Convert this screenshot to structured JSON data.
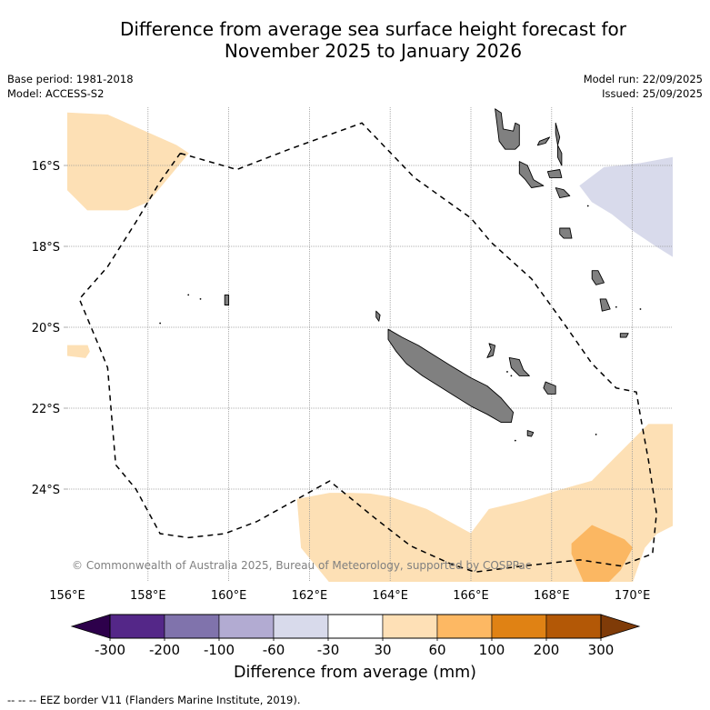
{
  "title": {
    "line1": "Difference from average sea surface height forecast for",
    "line2": "November 2025 to January 2026"
  },
  "meta_left": {
    "base_period": "Base period: 1981-2018",
    "model": "Model: ACCESS-S2"
  },
  "meta_right": {
    "model_run": "Model run: 22/09/2025",
    "issued": "Issued: 25/09/2025"
  },
  "map": {
    "lon_range": [
      156,
      171
    ],
    "lat_range": [
      -26.3,
      -14.6
    ],
    "x_ticks": [
      "156°E",
      "158°E",
      "160°E",
      "162°E",
      "164°E",
      "166°E",
      "168°E",
      "170°E"
    ],
    "x_tick_values": [
      156,
      158,
      160,
      162,
      164,
      166,
      168,
      170
    ],
    "y_ticks": [
      "16°S",
      "18°S",
      "20°S",
      "22°S",
      "24°S"
    ],
    "y_tick_values": [
      -16,
      -18,
      -20,
      -22,
      -24
    ],
    "gridlines": true,
    "copyright": "© Commonwealth of Australia 2025, Bureau of Meteorology, supported by COSPPac",
    "regions": [
      {
        "name": "anomaly-30-60-northwest",
        "category": "30 to 60",
        "color": "#fde0b5",
        "lonlat": [
          [
            156,
            -14.7
          ],
          [
            157,
            -14.75
          ],
          [
            158.7,
            -15.5
          ],
          [
            159.0,
            -15.7
          ],
          [
            158.0,
            -16.9
          ],
          [
            157.5,
            -17.1
          ],
          [
            156.5,
            -17.1
          ],
          [
            156,
            -16.6
          ]
        ]
      },
      {
        "name": "anomaly-30-60-west-small",
        "category": "30 to 60",
        "color": "#fde0b5",
        "lonlat": [
          [
            156,
            -20.45
          ],
          [
            156.5,
            -20.45
          ],
          [
            156.55,
            -20.6
          ],
          [
            156.45,
            -20.75
          ],
          [
            156,
            -20.7
          ]
        ]
      },
      {
        "name": "anomaly-minus60-minus30-northeast",
        "category": "-60 to -30",
        "color": "#d8daeb",
        "lonlat": [
          [
            168.7,
            -16.5
          ],
          [
            169.3,
            -16.05
          ],
          [
            170.2,
            -15.95
          ],
          [
            171,
            -15.8
          ],
          [
            171,
            -18.25
          ],
          [
            170.6,
            -18.0
          ],
          [
            170.0,
            -17.6
          ],
          [
            169.5,
            -17.2
          ],
          [
            169.0,
            -16.9
          ]
        ]
      },
      {
        "name": "anomaly-30-60-south",
        "category": "30 to 60",
        "color": "#fde0b5",
        "lonlat": [
          [
            161.7,
            -24.25
          ],
          [
            162.5,
            -24.1
          ],
          [
            163.0,
            -24.1
          ],
          [
            163.5,
            -24.12
          ],
          [
            164.0,
            -24.2
          ],
          [
            164.9,
            -24.5
          ],
          [
            166.0,
            -25.1
          ],
          [
            166.45,
            -24.5
          ],
          [
            167.3,
            -24.3
          ],
          [
            168.3,
            -24.0
          ],
          [
            169.0,
            -23.8
          ],
          [
            169.6,
            -23.2
          ],
          [
            170.4,
            -22.4
          ],
          [
            171,
            -22.4
          ],
          [
            171,
            -24.9
          ],
          [
            170.6,
            -25.1
          ],
          [
            170.3,
            -25.45
          ],
          [
            170.0,
            -26.3
          ],
          [
            162.5,
            -26.3
          ],
          [
            161.8,
            -25.45
          ]
        ]
      },
      {
        "name": "anomaly-60-100-south",
        "category": "60 to 100",
        "color": "#fbb762",
        "lonlat": [
          [
            168.5,
            -25.35
          ],
          [
            169.0,
            -24.9
          ],
          [
            169.8,
            -25.25
          ],
          [
            170.0,
            -25.45
          ],
          [
            169.7,
            -26.0
          ],
          [
            169.4,
            -26.3
          ],
          [
            168.8,
            -26.3
          ],
          [
            168.5,
            -25.6
          ]
        ]
      }
    ],
    "eez_border": {
      "label": "EEZ border",
      "lonlat": [
        [
          158.8,
          -15.7
        ],
        [
          160.2,
          -16.1
        ],
        [
          161.5,
          -15.6
        ],
        [
          163.3,
          -14.95
        ],
        [
          164.6,
          -16.3
        ],
        [
          166.0,
          -17.3
        ],
        [
          166.5,
          -17.9
        ],
        [
          167.5,
          -18.8
        ],
        [
          168.3,
          -19.9
        ],
        [
          169.0,
          -20.9
        ],
        [
          169.6,
          -21.5
        ],
        [
          170.1,
          -21.6
        ],
        [
          170.2,
          -22.2
        ],
        [
          170.4,
          -23.3
        ],
        [
          170.6,
          -24.6
        ],
        [
          170.5,
          -25.6
        ],
        [
          169.7,
          -25.9
        ],
        [
          168.7,
          -25.75
        ],
        [
          167.3,
          -25.9
        ],
        [
          166.1,
          -26.05
        ],
        [
          165.5,
          -25.85
        ],
        [
          164.5,
          -25.4
        ],
        [
          163.6,
          -24.7
        ],
        [
          162.5,
          -23.8
        ],
        [
          161.6,
          -24.3
        ],
        [
          160.7,
          -24.8
        ],
        [
          159.9,
          -25.1
        ],
        [
          159.0,
          -25.2
        ],
        [
          158.3,
          -25.1
        ],
        [
          157.7,
          -24.0
        ],
        [
          157.2,
          -23.4
        ],
        [
          157.1,
          -22.2
        ],
        [
          157.0,
          -21.0
        ],
        [
          156.8,
          -20.5
        ],
        [
          156.3,
          -19.3
        ],
        [
          157.0,
          -18.5
        ],
        [
          157.7,
          -17.4
        ],
        [
          158.3,
          -16.4
        ],
        [
          158.8,
          -15.7
        ]
      ]
    },
    "land": [
      {
        "name": "new-caledonia-grande-terre",
        "lonlat": [
          [
            163.95,
            -20.05
          ],
          [
            164.3,
            -20.25
          ],
          [
            164.7,
            -20.45
          ],
          [
            165.1,
            -20.7
          ],
          [
            165.5,
            -20.95
          ],
          [
            166.0,
            -21.25
          ],
          [
            166.4,
            -21.45
          ],
          [
            166.75,
            -21.75
          ],
          [
            167.05,
            -22.1
          ],
          [
            167.0,
            -22.35
          ],
          [
            166.75,
            -22.35
          ],
          [
            166.4,
            -22.15
          ],
          [
            166.0,
            -21.95
          ],
          [
            165.6,
            -21.7
          ],
          [
            165.2,
            -21.45
          ],
          [
            164.8,
            -21.2
          ],
          [
            164.4,
            -20.9
          ],
          [
            164.15,
            -20.6
          ],
          [
            163.95,
            -20.3
          ]
        ]
      },
      {
        "name": "belep-islands",
        "lonlat": [
          [
            163.65,
            -19.6
          ],
          [
            163.75,
            -19.7
          ],
          [
            163.72,
            -19.85
          ],
          [
            163.65,
            -19.75
          ]
        ]
      },
      {
        "name": "ouvea",
        "lonlat": [
          [
            166.45,
            -20.4
          ],
          [
            166.6,
            -20.45
          ],
          [
            166.55,
            -20.7
          ],
          [
            166.4,
            -20.75
          ],
          [
            166.5,
            -20.55
          ]
        ]
      },
      {
        "name": "lifou",
        "lonlat": [
          [
            166.95,
            -20.75
          ],
          [
            167.2,
            -20.8
          ],
          [
            167.3,
            -21.05
          ],
          [
            167.45,
            -21.2
          ],
          [
            167.2,
            -21.2
          ],
          [
            167.0,
            -21.0
          ]
        ]
      },
      {
        "name": "mare",
        "lonlat": [
          [
            167.85,
            -21.35
          ],
          [
            168.1,
            -21.45
          ],
          [
            168.1,
            -21.65
          ],
          [
            167.9,
            -21.65
          ],
          [
            167.8,
            -21.5
          ]
        ]
      },
      {
        "name": "isle-of-pines",
        "lonlat": [
          [
            167.4,
            -22.55
          ],
          [
            167.55,
            -22.6
          ],
          [
            167.5,
            -22.7
          ],
          [
            167.4,
            -22.68
          ]
        ]
      },
      {
        "name": "espiritu-santo",
        "lonlat": [
          [
            166.6,
            -14.6
          ],
          [
            166.75,
            -14.7
          ],
          [
            166.8,
            -15.1
          ],
          [
            167.05,
            -15.15
          ],
          [
            167.1,
            -14.95
          ],
          [
            167.2,
            -15.0
          ],
          [
            167.2,
            -15.5
          ],
          [
            167.1,
            -15.6
          ],
          [
            166.85,
            -15.6
          ],
          [
            166.7,
            -15.4
          ],
          [
            166.65,
            -15.0
          ]
        ]
      },
      {
        "name": "malekula",
        "lonlat": [
          [
            167.2,
            -15.9
          ],
          [
            167.4,
            -16.0
          ],
          [
            167.55,
            -16.35
          ],
          [
            167.8,
            -16.5
          ],
          [
            167.5,
            -16.55
          ],
          [
            167.35,
            -16.35
          ],
          [
            167.2,
            -16.2
          ]
        ]
      },
      {
        "name": "maewo",
        "lonlat": [
          [
            168.1,
            -14.95
          ],
          [
            168.2,
            -15.3
          ],
          [
            168.15,
            -15.5
          ],
          [
            168.1,
            -15.2
          ]
        ]
      },
      {
        "name": "pentecost",
        "lonlat": [
          [
            168.15,
            -15.5
          ],
          [
            168.25,
            -15.7
          ],
          [
            168.25,
            -16.0
          ],
          [
            168.15,
            -15.8
          ]
        ]
      },
      {
        "name": "ambae",
        "lonlat": [
          [
            167.7,
            -15.4
          ],
          [
            167.95,
            -15.3
          ],
          [
            167.85,
            -15.45
          ],
          [
            167.65,
            -15.5
          ]
        ]
      },
      {
        "name": "ambrym",
        "lonlat": [
          [
            167.9,
            -16.15
          ],
          [
            168.2,
            -16.1
          ],
          [
            168.25,
            -16.3
          ],
          [
            167.95,
            -16.3
          ]
        ]
      },
      {
        "name": "epi",
        "lonlat": [
          [
            168.1,
            -16.55
          ],
          [
            168.3,
            -16.6
          ],
          [
            168.45,
            -16.75
          ],
          [
            168.2,
            -16.8
          ]
        ]
      },
      {
        "name": "efate",
        "lonlat": [
          [
            168.2,
            -17.55
          ],
          [
            168.45,
            -17.55
          ],
          [
            168.5,
            -17.8
          ],
          [
            168.3,
            -17.8
          ],
          [
            168.2,
            -17.7
          ]
        ]
      },
      {
        "name": "erromango",
        "lonlat": [
          [
            169.0,
            -18.6
          ],
          [
            169.15,
            -18.6
          ],
          [
            169.3,
            -18.9
          ],
          [
            169.1,
            -18.95
          ],
          [
            169.0,
            -18.8
          ]
        ]
      },
      {
        "name": "tanna",
        "lonlat": [
          [
            169.2,
            -19.3
          ],
          [
            169.35,
            -19.3
          ],
          [
            169.45,
            -19.55
          ],
          [
            169.25,
            -19.6
          ]
        ]
      },
      {
        "name": "aneityum",
        "lonlat": [
          [
            169.7,
            -20.15
          ],
          [
            169.9,
            -20.15
          ],
          [
            169.85,
            -20.25
          ],
          [
            169.7,
            -20.25
          ]
        ]
      },
      {
        "name": "chesterfield-islet",
        "lonlat": [
          [
            159.9,
            -19.2
          ],
          [
            160.0,
            -19.2
          ],
          [
            160.0,
            -19.45
          ],
          [
            159.9,
            -19.45
          ]
        ]
      }
    ]
  },
  "colorbar": {
    "title": "Difference from average (mm)",
    "labels": [
      "-300",
      "-200",
      "-100",
      "-60",
      "-30",
      "30",
      "60",
      "100",
      "200",
      "300"
    ],
    "extend_min_color": "#2d004b",
    "extend_max_color": "#7f3b08",
    "bins": [
      {
        "range": "-300 to -200",
        "color": "#542788"
      },
      {
        "range": "-200 to -100",
        "color": "#8073ac"
      },
      {
        "range": "-100 to -60",
        "color": "#b2abd2"
      },
      {
        "range": "-60 to -30",
        "color": "#d8daeb"
      },
      {
        "range": "-30 to 30",
        "color": "#ffffff"
      },
      {
        "range": "30 to 60",
        "color": "#fee0b6"
      },
      {
        "range": "60 to 100",
        "color": "#fdb863"
      },
      {
        "range": "100 to 200",
        "color": "#e08214"
      },
      {
        "range": "200 to 300",
        "color": "#b35806"
      }
    ]
  },
  "footer": "--  --  -- EEZ border V11 (Flanders Marine Institute, 2019).",
  "land_color": "#808080"
}
